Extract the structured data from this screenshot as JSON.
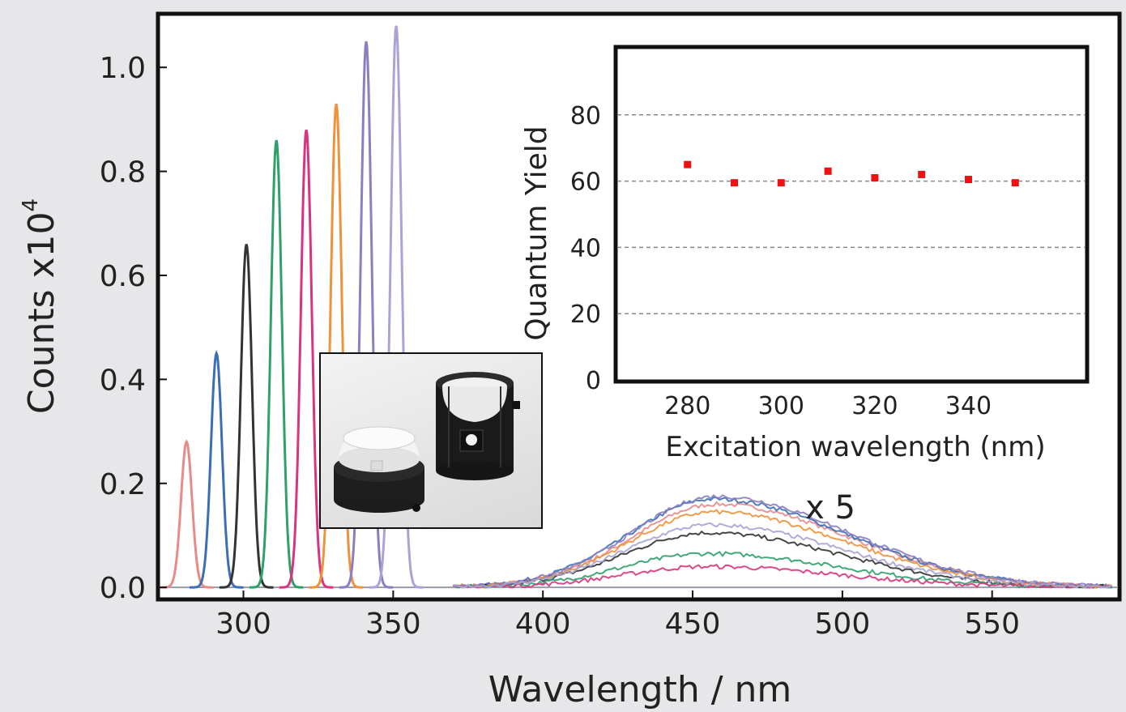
{
  "chart_data": [
    {
      "type": "line",
      "title": "",
      "xlabel": "Wavelength / nm",
      "ylabel": "Counts x10",
      "ylabel_exponent": "4",
      "xlim": [
        272,
        592
      ],
      "ylim": [
        -0.02,
        1.1
      ],
      "xticks": [
        300,
        350,
        400,
        450,
        500,
        550
      ],
      "yticks": [
        0.0,
        0.2,
        0.4,
        0.6,
        0.8,
        1.0
      ],
      "ytick_labels": [
        "0.0",
        "0.2",
        "0.4",
        "0.6",
        "0.8",
        "1.0"
      ],
      "annotation": "x 5",
      "grid": false,
      "series": [
        {
          "color": "#e88a8a",
          "excitation_center": 281,
          "excitation_peak": 0.28,
          "emission_peak": 0.16,
          "emission_center": 458
        },
        {
          "color": "#3b6fb5",
          "excitation_center": 291,
          "excitation_peak": 0.45,
          "emission_peak": 0.17,
          "emission_center": 457
        },
        {
          "color": "#333333",
          "excitation_center": 301,
          "excitation_peak": 0.66,
          "emission_peak": 0.105,
          "emission_center": 455
        },
        {
          "color": "#2ea06a",
          "excitation_center": 311,
          "excitation_peak": 0.86,
          "emission_peak": 0.065,
          "emission_center": 455
        },
        {
          "color": "#d9347e",
          "excitation_center": 321,
          "excitation_peak": 0.88,
          "emission_peak": 0.04,
          "emission_center": 455
        },
        {
          "color": "#f0923a",
          "excitation_center": 331,
          "excitation_peak": 0.93,
          "emission_peak": 0.145,
          "emission_center": 457
        },
        {
          "color": "#8a7fc0",
          "excitation_center": 341,
          "excitation_peak": 1.05,
          "emission_peak": 0.175,
          "emission_center": 458
        },
        {
          "color": "#a8a4d6",
          "excitation_center": 351,
          "excitation_peak": 1.08,
          "emission_peak": 0.12,
          "emission_center": 456
        }
      ]
    },
    {
      "type": "scatter",
      "title": "",
      "xlabel": "Excitation wavelength (nm)",
      "ylabel": "Quantum Yield",
      "xlim": [
        265,
        365
      ],
      "ylim": [
        0,
        100
      ],
      "xticks": [
        280,
        300,
        320,
        340
      ],
      "yticks": [
        0,
        20,
        40,
        60,
        80
      ],
      "grid": true,
      "marker_color": "#ee1111",
      "x": [
        280,
        290,
        300,
        310,
        320,
        330,
        340,
        350
      ],
      "y": [
        65,
        59.5,
        59.5,
        63,
        61,
        62,
        60.5,
        59.5
      ]
    }
  ]
}
